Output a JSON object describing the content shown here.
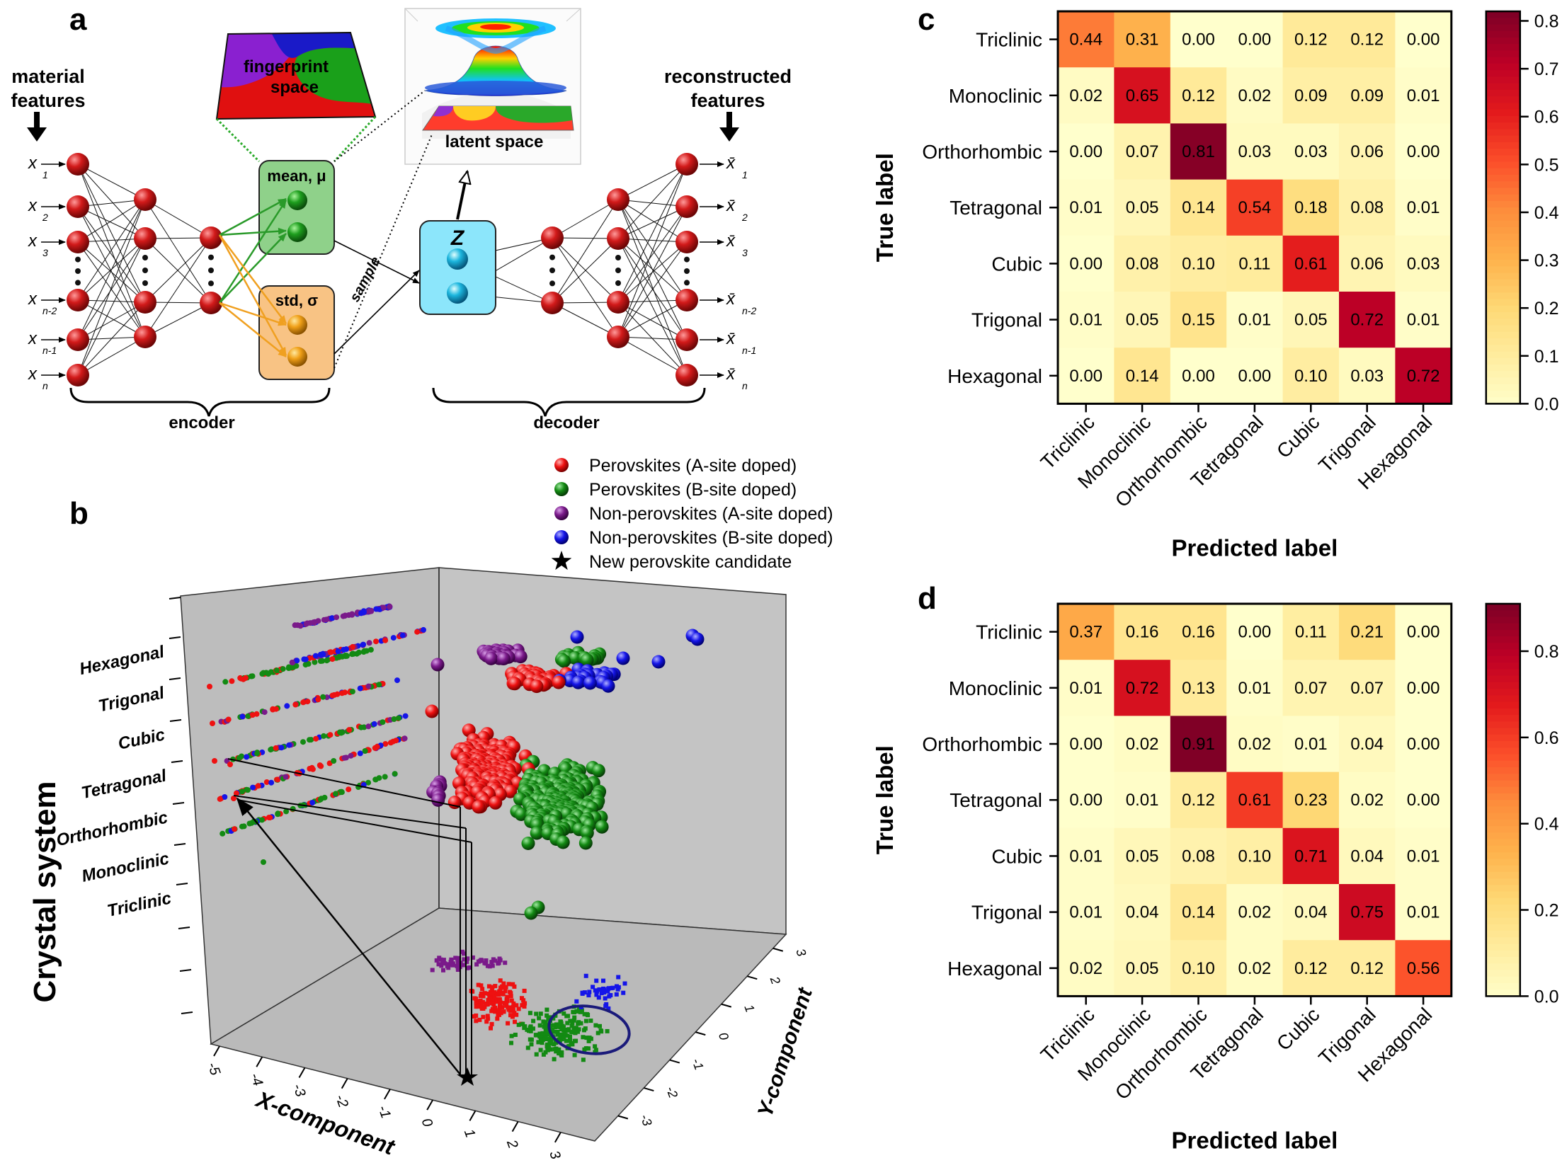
{
  "panels": {
    "a": "a",
    "b": "b",
    "c": "c",
    "d": "d"
  },
  "panel_a": {
    "input_title": [
      "material",
      "features"
    ],
    "output_title": [
      "reconstructed",
      "features"
    ],
    "inputs": [
      {
        "base": "x",
        "sub": "1"
      },
      {
        "base": "x",
        "sub": "2"
      },
      {
        "base": "x",
        "sub": "3"
      },
      {
        "base": "x",
        "sub": "n-2"
      },
      {
        "base": "x",
        "sub": "n-1"
      },
      {
        "base": "x",
        "sub": "n"
      }
    ],
    "outputs": [
      {
        "base": "x̄",
        "sub": "1"
      },
      {
        "base": "x̄",
        "sub": "2"
      },
      {
        "base": "x̄",
        "sub": "3"
      },
      {
        "base": "x̄",
        "sub": "n-2"
      },
      {
        "base": "x̄",
        "sub": "n-1"
      },
      {
        "base": "x̄",
        "sub": "n"
      }
    ],
    "mean_label": "mean, μ",
    "std_label": "std, σ",
    "z_label": "Z",
    "sample_label": "sample",
    "fingerprint_label": [
      "fingerprint",
      "space"
    ],
    "latent_label": "latent space",
    "encoder_label": "encoder",
    "decoder_label": "decoder",
    "colors": {
      "node_red": "#c0181a",
      "mean_box": "#8fd18a",
      "std_box": "#f8c384",
      "z_box": "#8ce6fb",
      "green_arrow": "#2a9a2a",
      "orange_arrow": "#f0a020"
    }
  },
  "panel_b": {
    "legend": [
      {
        "label": "Perovskites (A-site doped)",
        "color": "#ee1111",
        "marker": "sphere"
      },
      {
        "label": "Perovskites (B-site doped)",
        "color": "#138a13",
        "marker": "sphere"
      },
      {
        "label": "Non-perovskites (A-site doped)",
        "color": "#7a1a8a",
        "marker": "sphere"
      },
      {
        "label": "Non-perovskites (B-site doped)",
        "color": "#1515e8",
        "marker": "sphere"
      },
      {
        "label": "New perovskite candidate",
        "color": "#000000",
        "marker": "star"
      }
    ],
    "z_axis_title": "Crystal system",
    "z_categories": [
      "Triclinic",
      "Monoclinic",
      "Orthorhombic",
      "Tetragonal",
      "Cubic",
      "Trigonal",
      "Hexagonal"
    ],
    "x_axis_title": "X-component",
    "x_ticks": [
      "-5",
      "-4",
      "-3",
      "-2",
      "-1",
      "0",
      "1",
      "2",
      "3"
    ],
    "y_axis_title": "Y-component",
    "y_ticks": [
      "3",
      "2",
      "1",
      "0",
      "-1",
      "-2",
      "-3"
    ],
    "pane_color": "#bdbdbd"
  },
  "chart_data": [
    {
      "type": "heatmap",
      "id": "c",
      "xlabel": "Predicted label",
      "ylabel": "True label",
      "x_categories": [
        "Triclinic",
        "Monoclinic",
        "Orthorhombic",
        "Tetragonal",
        "Cubic",
        "Trigonal",
        "Hexagonal"
      ],
      "y_categories": [
        "Triclinic",
        "Monoclinic",
        "Orthorhombic",
        "Tetragonal",
        "Cubic",
        "Trigonal",
        "Hexagonal"
      ],
      "values": [
        [
          0.44,
          0.31,
          0.0,
          0.0,
          0.12,
          0.12,
          0.0
        ],
        [
          0.02,
          0.65,
          0.12,
          0.02,
          0.09,
          0.09,
          0.01
        ],
        [
          0.0,
          0.07,
          0.81,
          0.03,
          0.03,
          0.06,
          0.0
        ],
        [
          0.01,
          0.05,
          0.14,
          0.54,
          0.18,
          0.08,
          0.01
        ],
        [
          0.0,
          0.08,
          0.1,
          0.11,
          0.61,
          0.06,
          0.03
        ],
        [
          0.01,
          0.05,
          0.15,
          0.01,
          0.05,
          0.72,
          0.01
        ],
        [
          0.0,
          0.14,
          0.0,
          0.0,
          0.1,
          0.03,
          0.72
        ]
      ],
      "colorbar_range": [
        0.0,
        0.82
      ],
      "colorbar_ticks": [
        "0.0",
        "0.1",
        "0.2",
        "0.3",
        "0.4",
        "0.5",
        "0.6",
        "0.7",
        "0.8"
      ],
      "colormap": "YlOrRd"
    },
    {
      "type": "heatmap",
      "id": "d",
      "xlabel": "Predicted label",
      "ylabel": "True label",
      "x_categories": [
        "Triclinic",
        "Monoclinic",
        "Orthorhombic",
        "Tetragonal",
        "Cubic",
        "Trigonal",
        "Hexagonal"
      ],
      "y_categories": [
        "Triclinic",
        "Monoclinic",
        "Orthorhombic",
        "Tetragonal",
        "Cubic",
        "Trigonal",
        "Hexagonal"
      ],
      "values": [
        [
          0.37,
          0.16,
          0.16,
          0.0,
          0.11,
          0.21,
          0.0
        ],
        [
          0.01,
          0.72,
          0.13,
          0.01,
          0.07,
          0.07,
          0.0
        ],
        [
          0.0,
          0.02,
          0.91,
          0.02,
          0.01,
          0.04,
          0.0
        ],
        [
          0.0,
          0.01,
          0.12,
          0.61,
          0.23,
          0.02,
          0.0
        ],
        [
          0.01,
          0.05,
          0.08,
          0.1,
          0.71,
          0.04,
          0.01
        ],
        [
          0.01,
          0.04,
          0.14,
          0.02,
          0.04,
          0.75,
          0.01
        ],
        [
          0.02,
          0.05,
          0.1,
          0.02,
          0.12,
          0.12,
          0.56
        ]
      ],
      "colorbar_range": [
        0.0,
        0.91
      ],
      "colorbar_ticks": [
        "0.0",
        "0.2",
        "0.4",
        "0.6",
        "0.8"
      ],
      "colormap": "YlOrRd"
    }
  ]
}
